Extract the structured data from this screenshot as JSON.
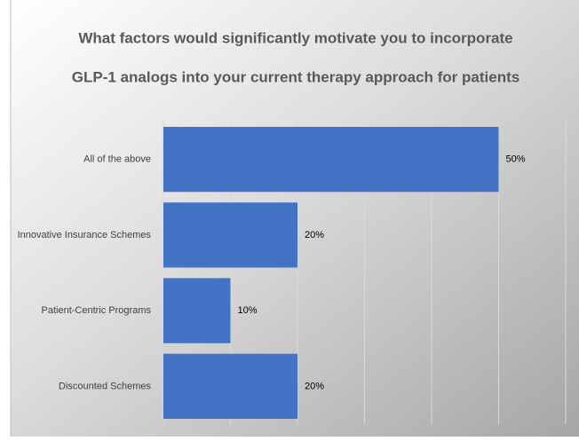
{
  "chart_data": {
    "type": "bar",
    "orientation": "horizontal",
    "title": [
      "What factors would significantly motivate you to incorporate",
      "GLP-1 analogs into your current therapy approach for patients"
    ],
    "categories": [
      "All of the above",
      "Innovative Insurance Schemes",
      "Patient-Centric Programs",
      "Discounted Schemes"
    ],
    "values": [
      50,
      20,
      10,
      20
    ],
    "value_labels": [
      "50%",
      "20%",
      "10%",
      "20%"
    ],
    "color": "#4472c4",
    "xlim": [
      0,
      60
    ],
    "xticks": [
      0,
      10,
      20,
      30,
      40,
      50,
      60
    ],
    "grid": true
  }
}
